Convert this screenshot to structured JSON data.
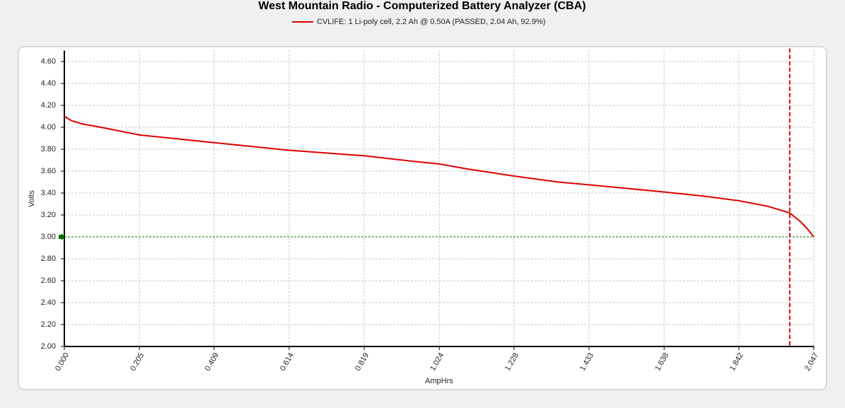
{
  "chart_data": {
    "type": "line",
    "title": "West Mountain Radio - Computerized Battery Analyzer (CBA)",
    "x_label": "AmpHrs",
    "y_label": "Volts",
    "x": [
      0,
      0.02,
      0.05,
      0.1,
      0.205,
      0.409,
      0.614,
      0.819,
      0.95,
      1.024,
      1.1,
      1.228,
      1.35,
      1.433,
      1.638,
      1.75,
      1.842,
      1.92,
      1.98,
      2.01,
      2.03,
      2.047
    ],
    "series": [
      {
        "name": "CVLIFE: 1 Li-poly cell, 2.2 Ah @ 0.50A (PASSED, 2.04 Ah, 92.9%)",
        "color": "#dd0000",
        "values": [
          4.1,
          4.06,
          4.03,
          4.0,
          3.93,
          3.86,
          3.79,
          3.74,
          3.69,
          3.665,
          3.62,
          3.555,
          3.5,
          3.475,
          3.41,
          3.37,
          3.33,
          3.28,
          3.22,
          3.14,
          3.07,
          3.0
        ]
      }
    ],
    "xlim": [
      0,
      2.047
    ],
    "ylim": [
      2.0,
      4.7
    ],
    "xticks": [
      {
        "value": 0,
        "label": "0.000"
      },
      {
        "value": 0.205,
        "label": "0.205"
      },
      {
        "value": 0.409,
        "label": "0.409"
      },
      {
        "value": 0.614,
        "label": "0.614"
      },
      {
        "value": 0.819,
        "label": "0.819"
      },
      {
        "value": 1.024,
        "label": "1.024"
      },
      {
        "value": 1.228,
        "label": "1.228"
      },
      {
        "value": 1.433,
        "label": "1.433"
      },
      {
        "value": 1.638,
        "label": "1.638"
      },
      {
        "value": 1.842,
        "label": "1.842"
      },
      {
        "value": 2.047,
        "label": "2.047"
      }
    ],
    "yticks": [
      {
        "value": 2.0,
        "label": "2.00"
      },
      {
        "value": 2.2,
        "label": "2.20"
      },
      {
        "value": 2.4,
        "label": "2.40"
      },
      {
        "value": 2.6,
        "label": "2.60"
      },
      {
        "value": 2.8,
        "label": "2.80"
      },
      {
        "value": 3.0,
        "label": "3.00"
      },
      {
        "value": 3.2,
        "label": "3.20"
      },
      {
        "value": 3.4,
        "label": "3.40"
      },
      {
        "value": 3.6,
        "label": "3.60"
      },
      {
        "value": 3.8,
        "label": "3.80"
      },
      {
        "value": 4.0,
        "label": "4.00"
      },
      {
        "value": 4.2,
        "label": "4.20"
      },
      {
        "value": 4.4,
        "label": "4.40"
      },
      {
        "value": 4.6,
        "label": "4.60"
      }
    ],
    "grid": true,
    "y_reference": {
      "value": 3.0,
      "color": "#007000"
    },
    "x_reference": {
      "value": 1.981,
      "color": "#dd0000"
    }
  }
}
